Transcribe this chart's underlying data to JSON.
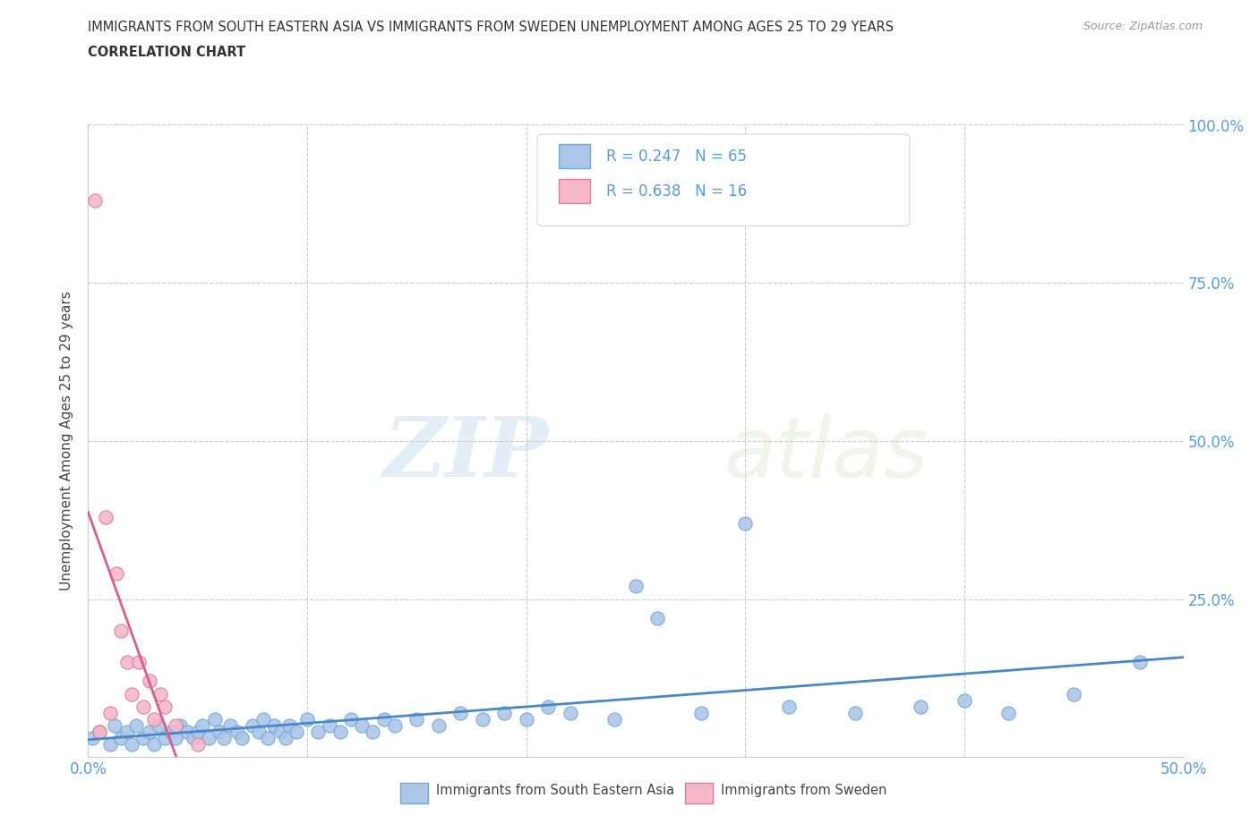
{
  "title_line1": "IMMIGRANTS FROM SOUTH EASTERN ASIA VS IMMIGRANTS FROM SWEDEN UNEMPLOYMENT AMONG AGES 25 TO 29 YEARS",
  "title_line2": "CORRELATION CHART",
  "source_text": "Source: ZipAtlas.com",
  "ylabel": "Unemployment Among Ages 25 to 29 years",
  "xlim": [
    0,
    0.5
  ],
  "ylim": [
    0,
    1.0
  ],
  "blue_color": "#adc6e8",
  "blue_edge": "#6fa8d4",
  "pink_color": "#f4b8c8",
  "pink_edge": "#e0789a",
  "blue_line_color": "#4a86c8",
  "pink_line_color": "#d95f8a",
  "tick_color": "#5b9bd5",
  "R_blue": 0.247,
  "N_blue": 65,
  "R_pink": 0.638,
  "N_pink": 16,
  "legend_label_blue": "Immigrants from South Eastern Asia",
  "legend_label_pink": "Immigrants from Sweden",
  "watermark_zip": "ZIP",
  "watermark_atlas": "atlas",
  "blue_scatter_x": [
    0.002,
    0.005,
    0.01,
    0.012,
    0.015,
    0.018,
    0.02,
    0.022,
    0.025,
    0.028,
    0.03,
    0.032,
    0.035,
    0.038,
    0.04,
    0.042,
    0.045,
    0.048,
    0.05,
    0.052,
    0.055,
    0.058,
    0.06,
    0.062,
    0.065,
    0.068,
    0.07,
    0.075,
    0.078,
    0.08,
    0.082,
    0.085,
    0.088,
    0.09,
    0.092,
    0.095,
    0.1,
    0.105,
    0.11,
    0.115,
    0.12,
    0.125,
    0.13,
    0.135,
    0.14,
    0.15,
    0.16,
    0.17,
    0.18,
    0.19,
    0.2,
    0.21,
    0.22,
    0.24,
    0.25,
    0.26,
    0.28,
    0.3,
    0.32,
    0.35,
    0.38,
    0.4,
    0.42,
    0.45,
    0.48
  ],
  "blue_scatter_y": [
    0.03,
    0.04,
    0.02,
    0.05,
    0.03,
    0.04,
    0.02,
    0.05,
    0.03,
    0.04,
    0.02,
    0.05,
    0.03,
    0.04,
    0.03,
    0.05,
    0.04,
    0.03,
    0.04,
    0.05,
    0.03,
    0.06,
    0.04,
    0.03,
    0.05,
    0.04,
    0.03,
    0.05,
    0.04,
    0.06,
    0.03,
    0.05,
    0.04,
    0.03,
    0.05,
    0.04,
    0.06,
    0.04,
    0.05,
    0.04,
    0.06,
    0.05,
    0.04,
    0.06,
    0.05,
    0.06,
    0.05,
    0.07,
    0.06,
    0.07,
    0.06,
    0.08,
    0.07,
    0.06,
    0.27,
    0.22,
    0.07,
    0.37,
    0.08,
    0.07,
    0.08,
    0.09,
    0.07,
    0.1,
    0.15
  ],
  "pink_scatter_x": [
    0.003,
    0.005,
    0.008,
    0.01,
    0.013,
    0.015,
    0.018,
    0.02,
    0.023,
    0.025,
    0.028,
    0.03,
    0.033,
    0.035,
    0.04,
    0.05
  ],
  "pink_scatter_y": [
    0.88,
    0.04,
    0.38,
    0.07,
    0.29,
    0.2,
    0.15,
    0.1,
    0.15,
    0.08,
    0.12,
    0.06,
    0.1,
    0.08,
    0.05,
    0.02
  ]
}
